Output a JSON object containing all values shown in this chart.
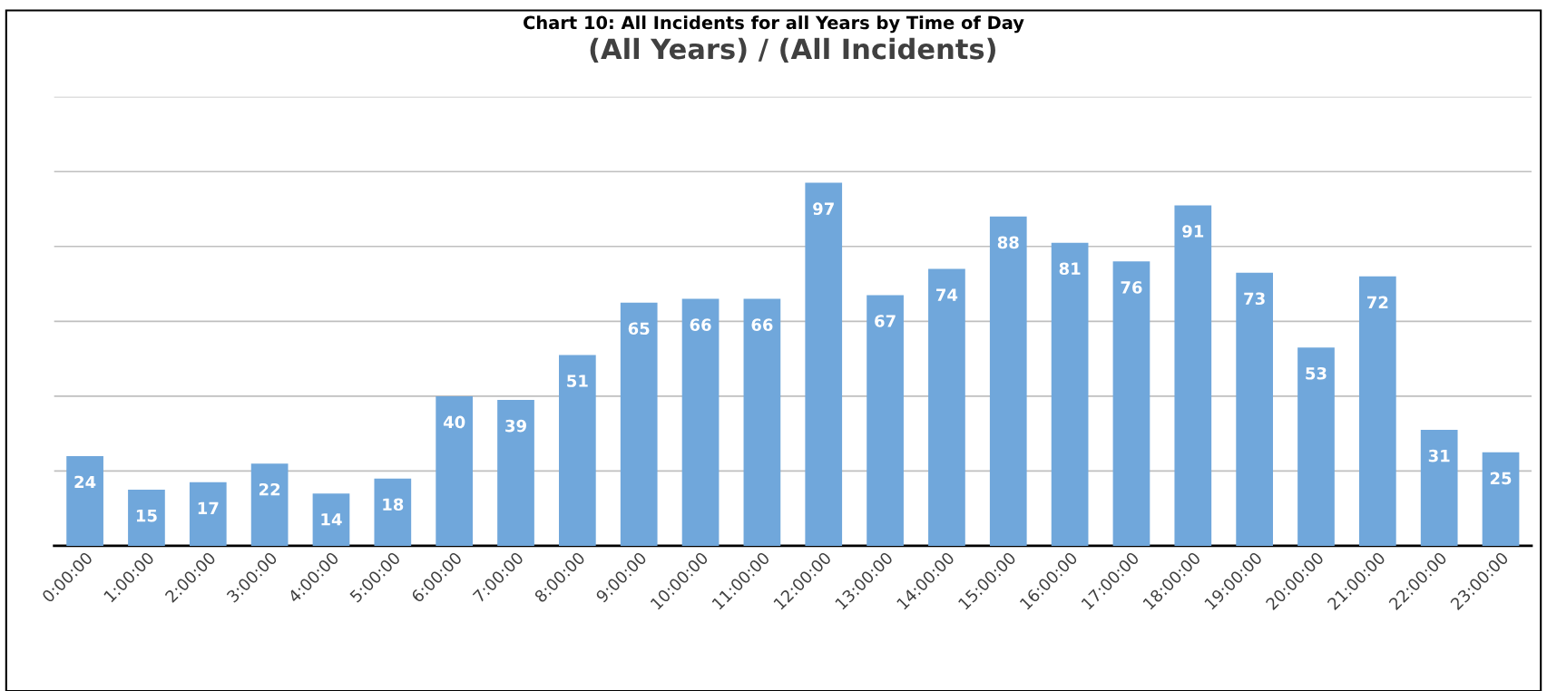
{
  "chart_data": {
    "type": "bar",
    "title": "(All Years) / (All Incidents)",
    "annotations": [
      "Chart 10: All Incidents for all Years by Time of Day"
    ],
    "categories": [
      "0:00:00",
      "1:00:00",
      "2:00:00",
      "3:00:00",
      "4:00:00",
      "5:00:00",
      "6:00:00",
      "7:00:00",
      "8:00:00",
      "9:00:00",
      "10:00:00",
      "11:00:00",
      "12:00:00",
      "13:00:00",
      "14:00:00",
      "15:00:00",
      "16:00:00",
      "17:00:00",
      "18:00:00",
      "19:00:00",
      "20:00:00",
      "21:00:00",
      "22:00:00",
      "23:00:00"
    ],
    "values": [
      24,
      15,
      17,
      22,
      14,
      18,
      40,
      39,
      51,
      65,
      66,
      66,
      97,
      67,
      74,
      88,
      81,
      76,
      91,
      73,
      53,
      72,
      31,
      25
    ],
    "color": "#70a7db",
    "ylim": [
      0,
      120
    ],
    "yticks": [
      {
        "value": 0,
        "label": null
      },
      {
        "value": 20,
        "label": null
      },
      {
        "value": 40,
        "label": null
      },
      {
        "value": 60,
        "label": null
      },
      {
        "value": 80,
        "label": null
      },
      {
        "value": 100,
        "label": null
      },
      {
        "value": 120,
        "label": null
      }
    ],
    "grid": "y",
    "tick_labels": "x",
    "data_labels": true,
    "legend": false
  }
}
